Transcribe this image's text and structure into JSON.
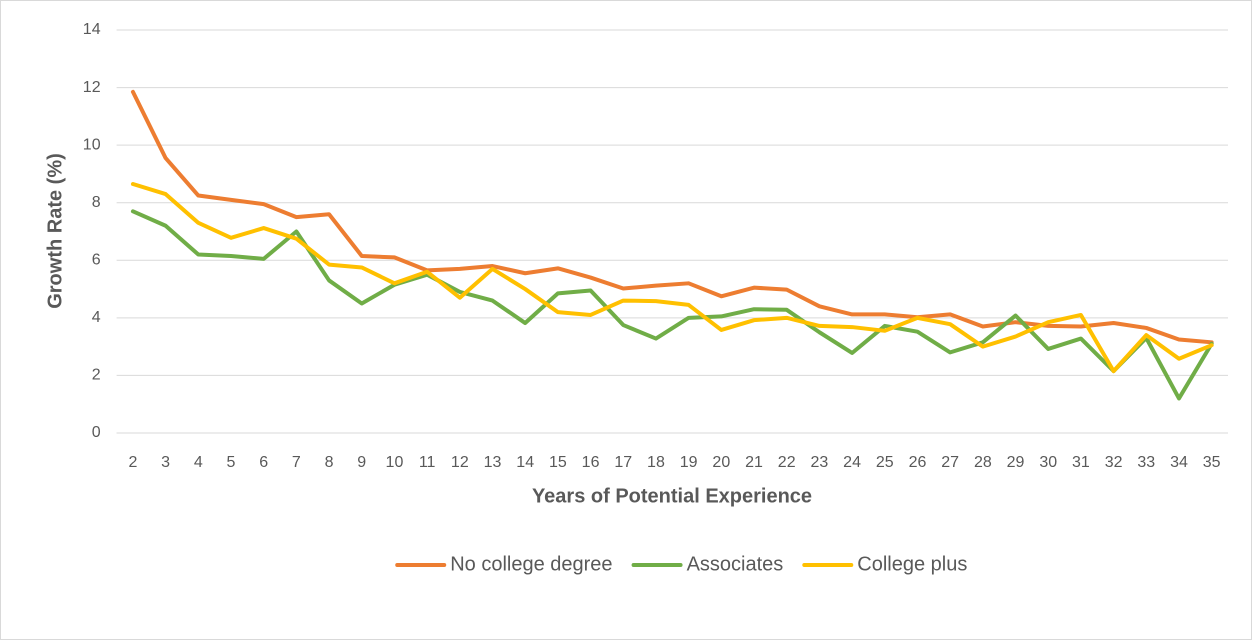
{
  "chart_data": {
    "type": "line",
    "x_label": "Years of Potential Experience",
    "y_label": "Growth Rate (%)",
    "categories": [
      "2",
      "3",
      "4",
      "5",
      "6",
      "7",
      "8",
      "9",
      "10",
      "11",
      "12",
      "13",
      "14",
      "15",
      "16",
      "17",
      "18",
      "19",
      "20",
      "21",
      "22",
      "23",
      "24",
      "25",
      "26",
      "27",
      "28",
      "29",
      "30",
      "31",
      "32",
      "33",
      "34",
      "35"
    ],
    "series": [
      {
        "name": "No college degree",
        "color": "#ed7d31",
        "values": [
          11.85,
          9.55,
          8.25,
          8.1,
          7.95,
          7.5,
          7.6,
          6.15,
          6.1,
          5.65,
          5.7,
          5.8,
          5.55,
          5.72,
          5.4,
          5.02,
          5.12,
          5.2,
          4.75,
          5.05,
          4.98,
          4.4,
          4.12,
          4.12,
          4.02,
          4.12,
          3.7,
          3.85,
          3.72,
          3.7,
          3.82,
          3.65,
          3.25,
          3.15
        ]
      },
      {
        "name": "Associates",
        "color": "#70ad47",
        "values": [
          7.7,
          7.2,
          6.2,
          6.15,
          6.05,
          7.0,
          5.3,
          4.5,
          5.15,
          5.5,
          4.9,
          4.6,
          3.82,
          4.85,
          4.95,
          3.75,
          3.28,
          4.0,
          4.05,
          4.3,
          4.28,
          3.5,
          2.78,
          3.72,
          3.52,
          2.8,
          3.15,
          4.08,
          2.92,
          3.28,
          2.15,
          3.3,
          1.2,
          3.1
        ]
      },
      {
        "name": "College plus",
        "color": "#ffc000",
        "values": [
          8.65,
          8.3,
          7.3,
          6.78,
          7.12,
          6.75,
          5.85,
          5.75,
          5.2,
          5.6,
          4.7,
          5.7,
          5.0,
          4.2,
          4.1,
          4.6,
          4.58,
          4.45,
          3.58,
          3.92,
          4.0,
          3.72,
          3.68,
          3.55,
          4.0,
          3.78,
          3.0,
          3.35,
          3.85,
          4.1,
          2.15,
          3.4,
          2.58,
          3.05
        ]
      }
    ],
    "ylim": [
      0,
      14
    ],
    "yticks": [
      0,
      2,
      4,
      6,
      8,
      10,
      12,
      14
    ],
    "grid": true,
    "legend": "bottom"
  }
}
